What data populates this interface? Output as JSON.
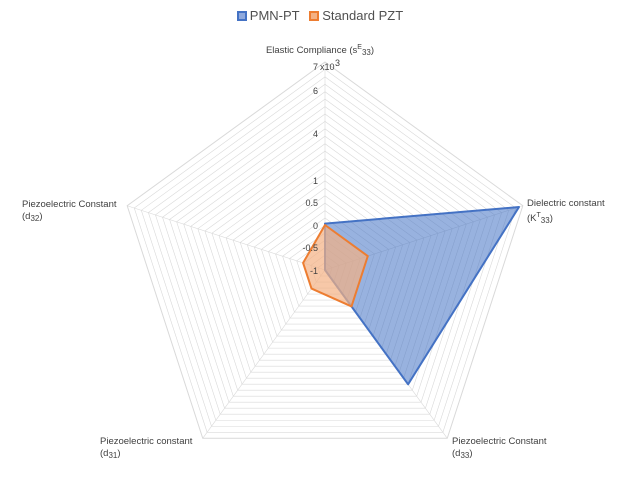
{
  "legend": {
    "series1_label": "PMN-PT",
    "series2_label": "Standard PZT"
  },
  "axes": [
    {
      "main": "Elastic Compliance (s",
      "sup": "E",
      "sub": "33",
      "close": ")"
    },
    {
      "main": "Dielectric constant",
      "line2": "(K",
      "sup": "T",
      "sub": "33",
      "close": ")"
    },
    {
      "main": "Piezoelectric Constant",
      "line2": "(d",
      "sub": "33",
      "close": ")"
    },
    {
      "main": "Piezoelectric constant",
      "line2": "(d",
      "sub": "31",
      "close": ")"
    },
    {
      "main": "Piezoelectric Constant",
      "line2": "(d",
      "sub": "32",
      "close": ")"
    }
  ],
  "tick_labels": [
    "-1",
    "-0.5",
    "0",
    "0.5",
    "1",
    "4",
    "6",
    "7"
  ],
  "tick_multiplier": "x10",
  "tick_multiplier_exp": "3",
  "colors": {
    "series1_fill": "#4472c4",
    "series1_stroke": "#4472c4",
    "series2_fill": "#f4b183",
    "series2_stroke": "#ed7d31",
    "grid": "#d9d9d9"
  },
  "chart_data": {
    "type": "radar",
    "categories": [
      "Elastic Compliance (sE33)",
      "Dielectric constant (KT33)",
      "Piezoelectric Constant (d33)",
      "Piezoelectric constant (d31)",
      "Piezoelectric Constant (d32)"
    ],
    "scale_ticks": [
      -1,
      -0.5,
      0,
      0.5,
      1,
      4,
      6,
      7
    ],
    "series": [
      {
        "name": "PMN-PT",
        "values": [
          0.03,
          7,
          4.2,
          -1,
          -1
        ]
      },
      {
        "name": "Standard PZT",
        "values": [
          0,
          0,
          0,
          -0.5,
          -0.5
        ]
      }
    ]
  }
}
